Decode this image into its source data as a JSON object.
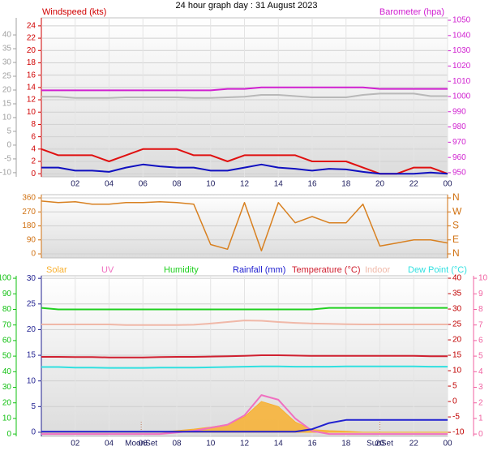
{
  "chart_data": [
    {
      "type": "line",
      "title": "24 hour graph day : 31 August 2023",
      "y_label": "Windspeed (kts)",
      "y2_label": "Barometer (hpa)",
      "x": [
        0,
        1,
        2,
        3,
        4,
        5,
        6,
        7,
        8,
        9,
        10,
        11,
        12,
        13,
        14,
        15,
        16,
        17,
        18,
        19,
        20,
        21,
        22,
        23,
        24
      ],
      "xlim": [
        0,
        24
      ],
      "xticks": [
        {
          "value": 2,
          "label": "02"
        },
        {
          "value": 4,
          "label": "04"
        },
        {
          "value": 6,
          "label": "06"
        },
        {
          "value": 8,
          "label": "08"
        },
        10,
        12,
        14,
        16,
        18,
        20,
        22,
        {
          "value": 24,
          "label": "00"
        }
      ],
      "ylim": [
        -0.5,
        25.3
      ],
      "yticks": [
        0,
        2,
        4,
        6,
        8,
        10,
        12,
        14,
        16,
        18,
        20,
        22,
        24
      ],
      "y2lim": [
        947.3,
        1051.6
      ],
      "y2ticks": [
        950,
        960,
        970,
        980,
        990,
        1000,
        1010,
        1020,
        1030,
        1040,
        1050
      ],
      "y3lim": [
        -11.5,
        46.2
      ],
      "y3ticks": [
        -10,
        -5,
        0,
        5,
        10,
        15,
        20,
        25,
        30,
        35,
        40
      ],
      "axis_colors": {
        "y": "#d00000",
        "y2": "#d020d0",
        "y3": "#a0a0a0"
      },
      "grid": true,
      "series": [
        {
          "color": "#b8b8b8",
          "values": [
            12.5,
            12.5,
            12.3,
            12.3,
            12.3,
            12.4,
            12.4,
            12.4,
            12.4,
            12.3,
            12.3,
            12.4,
            12.5,
            12.8,
            12.8,
            12.6,
            12.4,
            12.4,
            12.4,
            12.8,
            13,
            13,
            13,
            12.6,
            12.6
          ]
        },
        {
          "color": "#e01010",
          "values": [
            4,
            3,
            3,
            3,
            2,
            3,
            4,
            4,
            4,
            3,
            3,
            2,
            3,
            3,
            3,
            3,
            2,
            2,
            2,
            1,
            0,
            0,
            1,
            1,
            0
          ]
        },
        {
          "color": "#1010c0",
          "values": [
            1,
            1,
            0.5,
            0.5,
            0.3,
            1,
            1.5,
            1.2,
            1,
            1,
            0.5,
            0.5,
            1,
            1.5,
            1,
            0.8,
            0.5,
            0.8,
            0.7,
            0.3,
            0,
            0,
            0,
            0.2,
            0
          ]
        },
        {
          "color": "#d020d0",
          "axis": "y2",
          "values": [
            1004,
            1004,
            1004,
            1004,
            1004,
            1004,
            1004,
            1004,
            1004,
            1004,
            1004,
            1005,
            1005,
            1006,
            1006,
            1006,
            1006,
            1006,
            1006,
            1006,
            1005,
            1005,
            1005,
            1005,
            1005
          ]
        }
      ]
    },
    {
      "type": "line",
      "x": [
        0,
        1,
        2,
        3,
        4,
        5,
        6,
        7,
        8,
        9,
        10,
        11,
        12,
        13,
        14,
        15,
        16,
        17,
        18,
        19,
        20,
        21,
        22,
        23,
        24
      ],
      "xlim": [
        0,
        24
      ],
      "ylim": [
        -26,
        381
      ],
      "yticks": [
        0,
        90,
        180,
        270,
        360
      ],
      "y2lim": [
        -26,
        381
      ],
      "y2ticks": [
        {
          "value": 0,
          "label": "N"
        },
        {
          "value": 90,
          "label": "E"
        },
        {
          "value": 180,
          "label": "S"
        },
        {
          "value": 270,
          "label": "W"
        },
        {
          "value": 360,
          "label": "N"
        }
      ],
      "axis_colors": {
        "y": "#d07010",
        "y2": "#d07010"
      },
      "grid": true,
      "series": [
        {
          "color": "#d88020",
          "values": [
            340,
            330,
            335,
            320,
            320,
            330,
            330,
            335,
            330,
            320,
            60,
            30,
            330,
            20,
            330,
            200,
            240,
            200,
            200,
            320,
            50,
            70,
            90,
            90,
            70
          ]
        }
      ]
    },
    {
      "type": "line",
      "x": [
        0,
        1,
        2,
        3,
        4,
        5,
        6,
        7,
        8,
        9,
        10,
        11,
        12,
        13,
        14,
        15,
        16,
        17,
        18,
        19,
        20,
        21,
        22,
        23,
        24
      ],
      "xlim": [
        0,
        24
      ],
      "xticks": [
        {
          "value": 2,
          "label": "02"
        },
        {
          "value": 4,
          "label": "04"
        },
        {
          "value": 6,
          "label": "06"
        },
        {
          "value": 8,
          "label": "08"
        },
        10,
        12,
        14,
        16,
        18,
        20,
        22,
        {
          "value": 24,
          "label": "00"
        }
      ],
      "ylim": [
        -0.8,
        30.5
      ],
      "yticks": [
        0,
        5,
        10,
        15,
        20,
        25,
        30
      ],
      "y2lim": [
        -11.3,
        40.8
      ],
      "y2ticks": [
        -10,
        -5,
        0,
        5,
        10,
        15,
        20,
        25,
        30,
        35,
        40
      ],
      "y3lim": [
        -1.5,
        101.6
      ],
      "y3ticks": [
        0,
        10,
        20,
        30,
        40,
        50,
        60,
        70,
        80,
        90,
        100
      ],
      "y4lim": [
        -0.15,
        10.16
      ],
      "y4ticks": [
        0,
        1,
        2,
        3,
        4,
        5,
        6,
        7,
        8,
        9,
        10
      ],
      "axis_colors": {
        "y": "#202090",
        "y2": "#c00000",
        "y3": "#10c010",
        "y4": "#f060a0"
      },
      "grid": true,
      "annotations": [
        {
          "x": 5.9,
          "text": "MoonSet"
        },
        {
          "x": 20,
          "text": "SunSet"
        }
      ],
      "series": [
        {
          "name": "Solar",
          "color": "#f8b030",
          "area": true,
          "values": [
            0,
            0,
            0,
            0,
            0,
            0,
            0,
            0,
            0.3,
            0.6,
            1,
            1.5,
            3,
            6,
            5,
            2,
            0.5,
            0.3,
            0.2,
            0,
            0,
            0,
            0,
            0,
            0
          ]
        },
        {
          "name": "UV",
          "color": "#f070c0",
          "axis": "y4",
          "values": [
            0,
            0,
            0,
            0,
            0,
            0,
            0,
            0,
            0.1,
            0.2,
            0.4,
            0.6,
            1.2,
            2.5,
            2.2,
            1,
            0.2,
            0,
            0,
            0,
            0,
            0,
            0,
            0,
            0
          ]
        },
        {
          "name": "Humidity",
          "color": "#20d020",
          "axis": "y3",
          "values": [
            81,
            80,
            80,
            80,
            80,
            80,
            80,
            80,
            80,
            80,
            80,
            80,
            80,
            80,
            80,
            80,
            80,
            81,
            81,
            81,
            81,
            81,
            81,
            81,
            81
          ]
        },
        {
          "name": "Rainfall (mm)",
          "color": "#2020d0",
          "values": [
            0.1,
            0.1,
            0.1,
            0.1,
            0.1,
            0.1,
            0.1,
            0.1,
            0.1,
            0.1,
            0.1,
            0.1,
            0.1,
            0.1,
            0.1,
            0.1,
            0.6,
            1.8,
            2.4,
            2.4,
            2.4,
            2.4,
            2.4,
            2.4,
            2.4
          ]
        },
        {
          "name": "Temperature (°C)",
          "color": "#d02030",
          "axis": "y2",
          "values": [
            14.5,
            14.5,
            14.4,
            14.4,
            14.3,
            14.3,
            14.3,
            14.4,
            14.5,
            14.5,
            14.6,
            14.7,
            14.8,
            15,
            15,
            14.9,
            14.8,
            14.8,
            14.8,
            14.8,
            14.8,
            14.8,
            14.8,
            14.7,
            14.7
          ]
        },
        {
          "name": "Indoor",
          "color": "#f0b8a8",
          "axis": "y2",
          "values": [
            25,
            25,
            25,
            25,
            25,
            24.8,
            24.8,
            24.8,
            24.8,
            24.9,
            25.3,
            25.8,
            26.3,
            26.2,
            25.8,
            25.5,
            25.3,
            25.2,
            25.1,
            25,
            25,
            25,
            25,
            25,
            25
          ]
        },
        {
          "name": "Dew Point (°C)",
          "color": "#30e0e0",
          "axis": "y2",
          "values": [
            11.2,
            11.2,
            11,
            11,
            10.9,
            10.9,
            10.9,
            11,
            11,
            11,
            11.1,
            11.2,
            11.3,
            11.4,
            11.4,
            11.3,
            11.3,
            11.3,
            11.4,
            11.4,
            11.4,
            11.4,
            11.4,
            11.3,
            11.3
          ]
        }
      ]
    }
  ]
}
